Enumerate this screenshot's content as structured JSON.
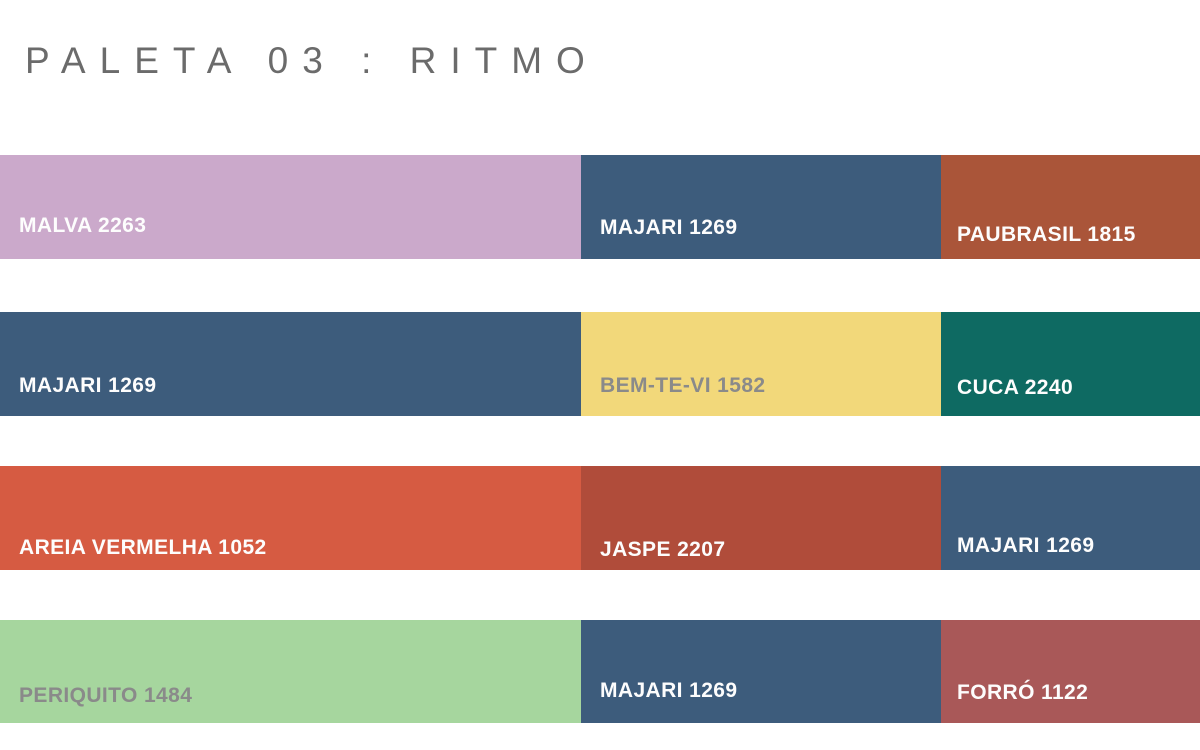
{
  "title": {
    "text": "PALETA 03 : RITMO",
    "color": "#6b6b6b"
  },
  "label_colors": {
    "light": "#fdfdfd",
    "gray": "#8a8a8a"
  },
  "rows": [
    {
      "cells": [
        {
          "name": "MALVA 2263",
          "color": "#cba9cb",
          "text_color": "#fdfdfd"
        },
        {
          "name": "MAJARI 1269",
          "color": "#3d5c7c",
          "text_color": "#fdfdfd"
        },
        {
          "name": "PAUBRASIL 1815",
          "color": "#aa5539",
          "text_color": "#fdfdfd"
        }
      ]
    },
    {
      "cells": [
        {
          "name": "MAJARI 1269",
          "color": "#3d5c7c",
          "text_color": "#fdfdfd"
        },
        {
          "name": "BEM-TE-VI 1582",
          "color": "#f2d87a",
          "text_color": "#8a8a8a"
        },
        {
          "name": "CUCA 2240",
          "color": "#0e6a62",
          "text_color": "#fdfdfd"
        }
      ]
    },
    {
      "cells": [
        {
          "name": "AREIA VERMELHA 1052",
          "color": "#d65b42",
          "text_color": "#fdfdfd"
        },
        {
          "name": "JASPE 2207",
          "color": "#b04c3a",
          "text_color": "#fdfdfd"
        },
        {
          "name": "MAJARI 1269",
          "color": "#3d5c7c",
          "text_color": "#fdfdfd"
        }
      ]
    },
    {
      "cells": [
        {
          "name": "PERIQUITO 1484",
          "color": "#a6d69e",
          "text_color": "#8a8a8a"
        },
        {
          "name": "MAJARI 1269",
          "color": "#3d5c7c",
          "text_color": "#fdfdfd"
        },
        {
          "name": "FORRÓ 1122",
          "color": "#a95858",
          "text_color": "#fdfdfd"
        }
      ]
    }
  ]
}
